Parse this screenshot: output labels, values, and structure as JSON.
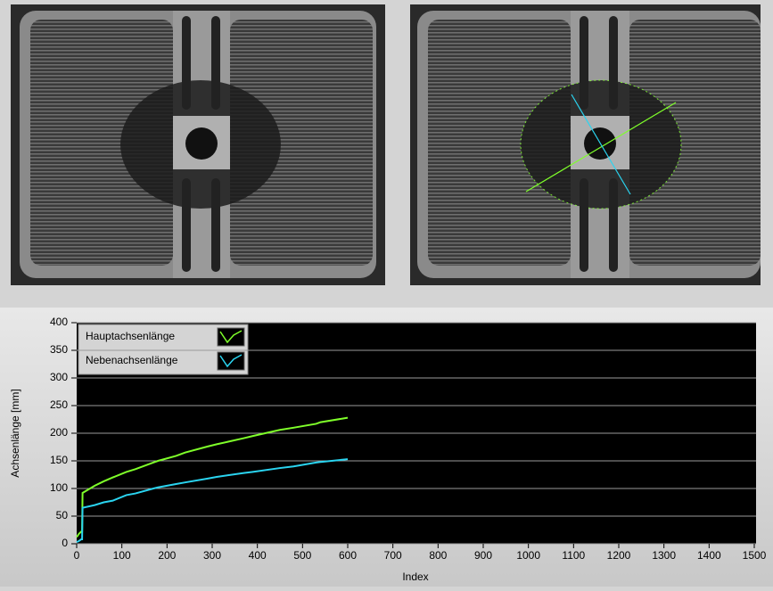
{
  "chart_data": {
    "type": "line",
    "x_label": "Index",
    "y_label": "Achsenlänge [mm]",
    "x": [
      0,
      5,
      10,
      12,
      13,
      40,
      60,
      80,
      110,
      130,
      170,
      180,
      220,
      240,
      290,
      310,
      370,
      390,
      450,
      480,
      530,
      540,
      600
    ],
    "series": [
      {
        "name": "Hauptachsenlänge",
        "color": "#7fff2a",
        "values": [
          12,
          18,
          22,
          22,
          92,
          105,
          113,
          120,
          130,
          135,
          147,
          150,
          159,
          165,
          176,
          180,
          191,
          195,
          206,
          210,
          217,
          220,
          228
        ]
      },
      {
        "name": "Nebenachsenlänge",
        "color": "#2ad4f0",
        "values": [
          3,
          5,
          8,
          8,
          65,
          70,
          75,
          78,
          88,
          91,
          100,
          102,
          108,
          111,
          118,
          121,
          128,
          130,
          137,
          140,
          147,
          148,
          153
        ]
      }
    ],
    "xlim": [
      0,
      1500
    ],
    "xticks": [
      0,
      100,
      200,
      300,
      400,
      500,
      600,
      700,
      800,
      900,
      1000,
      1100,
      1200,
      1300,
      1400,
      1500
    ],
    "ylim": [
      0,
      400
    ],
    "yticks": [
      0,
      50,
      100,
      150,
      200,
      250,
      300,
      350,
      400
    ],
    "grid": "y",
    "legend": "upper-left"
  }
}
